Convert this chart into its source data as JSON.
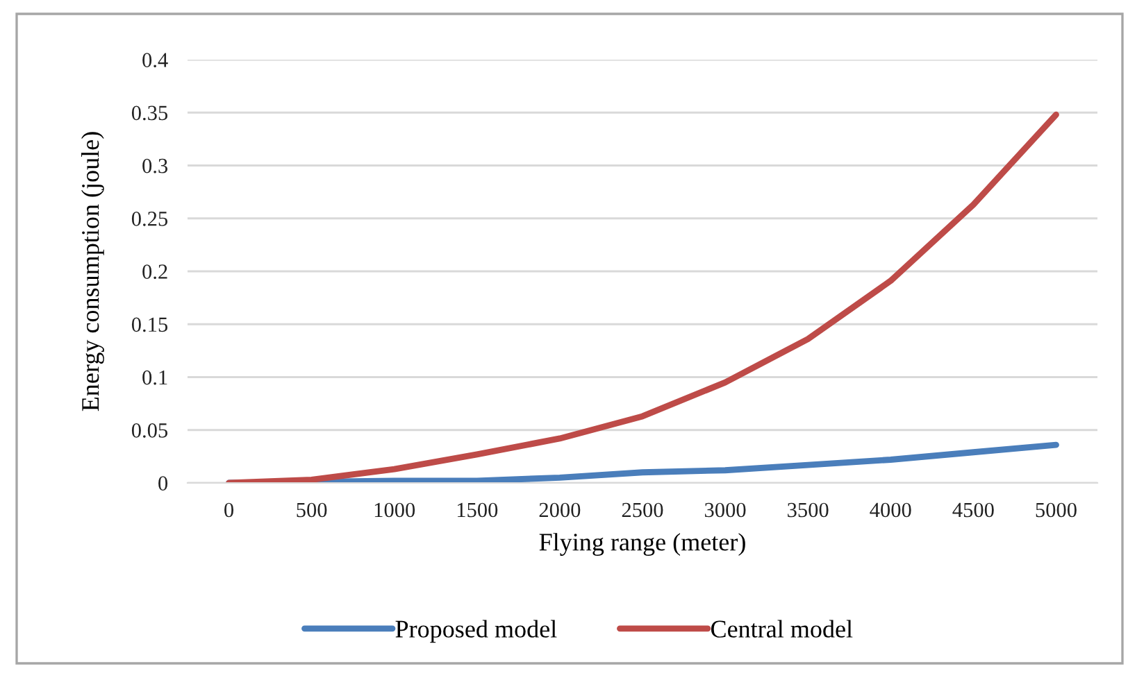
{
  "chart_data": {
    "type": "line",
    "xlabel": "Flying range (meter)",
    "ylabel": "Energy consumption (joule)",
    "categories": [
      "0",
      "500",
      "1000",
      "1500",
      "2000",
      "2500",
      "3000",
      "3500",
      "4000",
      "4500",
      "5000"
    ],
    "series": [
      {
        "name": "Proposed model",
        "color": "#4a7ebb",
        "values": [
          0,
          0.001,
          0.002,
          0.002,
          0.005,
          0.01,
          0.012,
          0.017,
          0.022,
          0.029,
          0.036
        ]
      },
      {
        "name": "Central model",
        "color": "#be4b48",
        "values": [
          0,
          0.003,
          0.013,
          0.027,
          0.042,
          0.063,
          0.095,
          0.136,
          0.191,
          0.263,
          0.348
        ]
      }
    ],
    "ylim": [
      0,
      0.4
    ],
    "yticks": [
      0,
      0.05,
      0.1,
      0.15,
      0.2,
      0.25,
      0.3,
      0.35,
      0.4
    ],
    "grid": "y",
    "legend": "bottom",
    "marker": "none",
    "line_style": "solid"
  }
}
